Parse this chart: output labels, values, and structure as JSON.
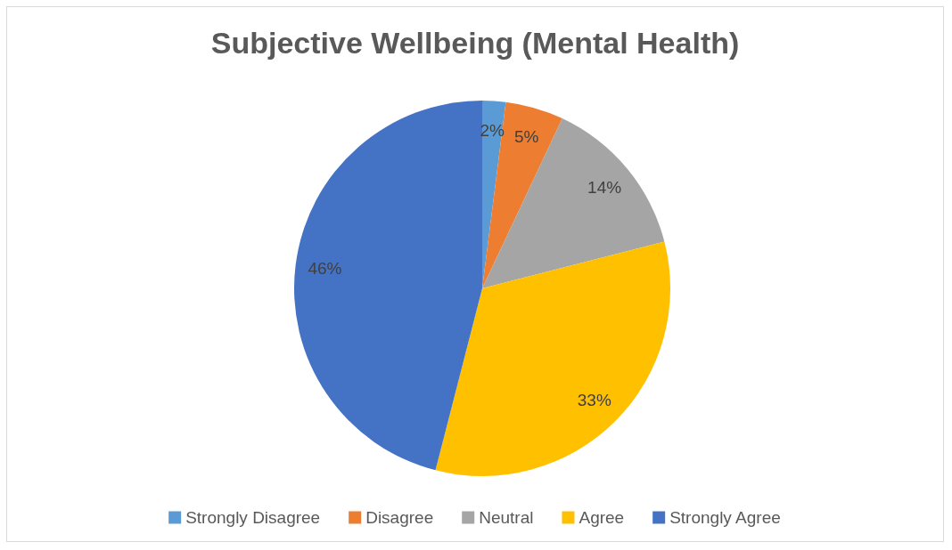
{
  "chart_data": {
    "type": "pie",
    "title": "Subjective Wellbeing (Mental Health)",
    "categories": [
      "Strongly Disagree",
      "Disagree",
      "Neutral",
      "Agree",
      "Strongly Agree"
    ],
    "values": [
      2,
      5,
      14,
      33,
      46
    ],
    "colors": [
      "#5b9bd5",
      "#ed7d31",
      "#a5a5a5",
      "#ffc000",
      "#4472c4"
    ],
    "value_labels": [
      "2%",
      "5%",
      "14%",
      "33%",
      "46%"
    ],
    "legend": "bottom"
  }
}
